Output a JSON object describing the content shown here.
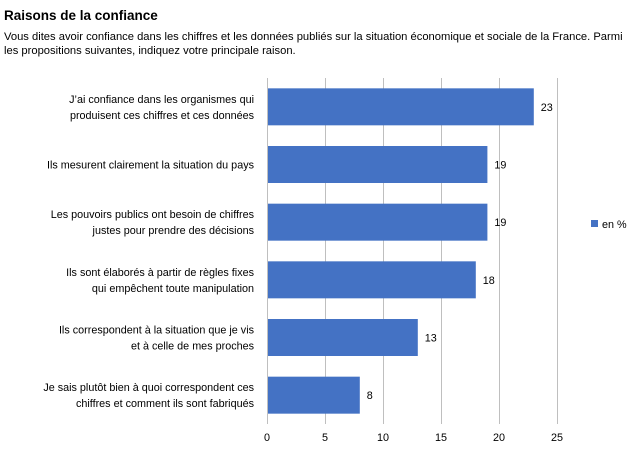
{
  "title": "Raisons de la confiance",
  "subtitle": "Vous dites avoir confiance dans les chiffres et les données publiés sur la situation économique et sociale de la France. Parmi les propositions suivantes, indiquez votre principale raison.",
  "chart_data": {
    "type": "bar",
    "orientation": "horizontal",
    "title": "Raisons de la confiance",
    "categories": [
      [
        "J’ai confiance dans les organismes qui",
        "produisent ces chiffres et ces données"
      ],
      [
        "Ils mesurent clairement la situation du pays"
      ],
      [
        "Les pouvoirs publics ont besoin de chiffres",
        "justes pour prendre des décisions"
      ],
      [
        "Ils sont élaborés à partir de règles fixes",
        "qui empêchent toute manipulation"
      ],
      [
        "Ils correspondent à la situation que je vis",
        "et à celle de mes proches"
      ],
      [
        "Je sais plutôt bien à quoi correspondent ces",
        "chiffres et comment ils sont fabriqués"
      ]
    ],
    "series": [
      {
        "name": "en %",
        "values": [
          23,
          19,
          19,
          18,
          13,
          8
        ],
        "color": "#4472C4"
      }
    ],
    "xlim": [
      0,
      25
    ],
    "xticks": [
      0,
      5,
      10,
      15,
      20,
      25
    ],
    "grid": true,
    "legend_position": "right",
    "data_labels": true
  }
}
